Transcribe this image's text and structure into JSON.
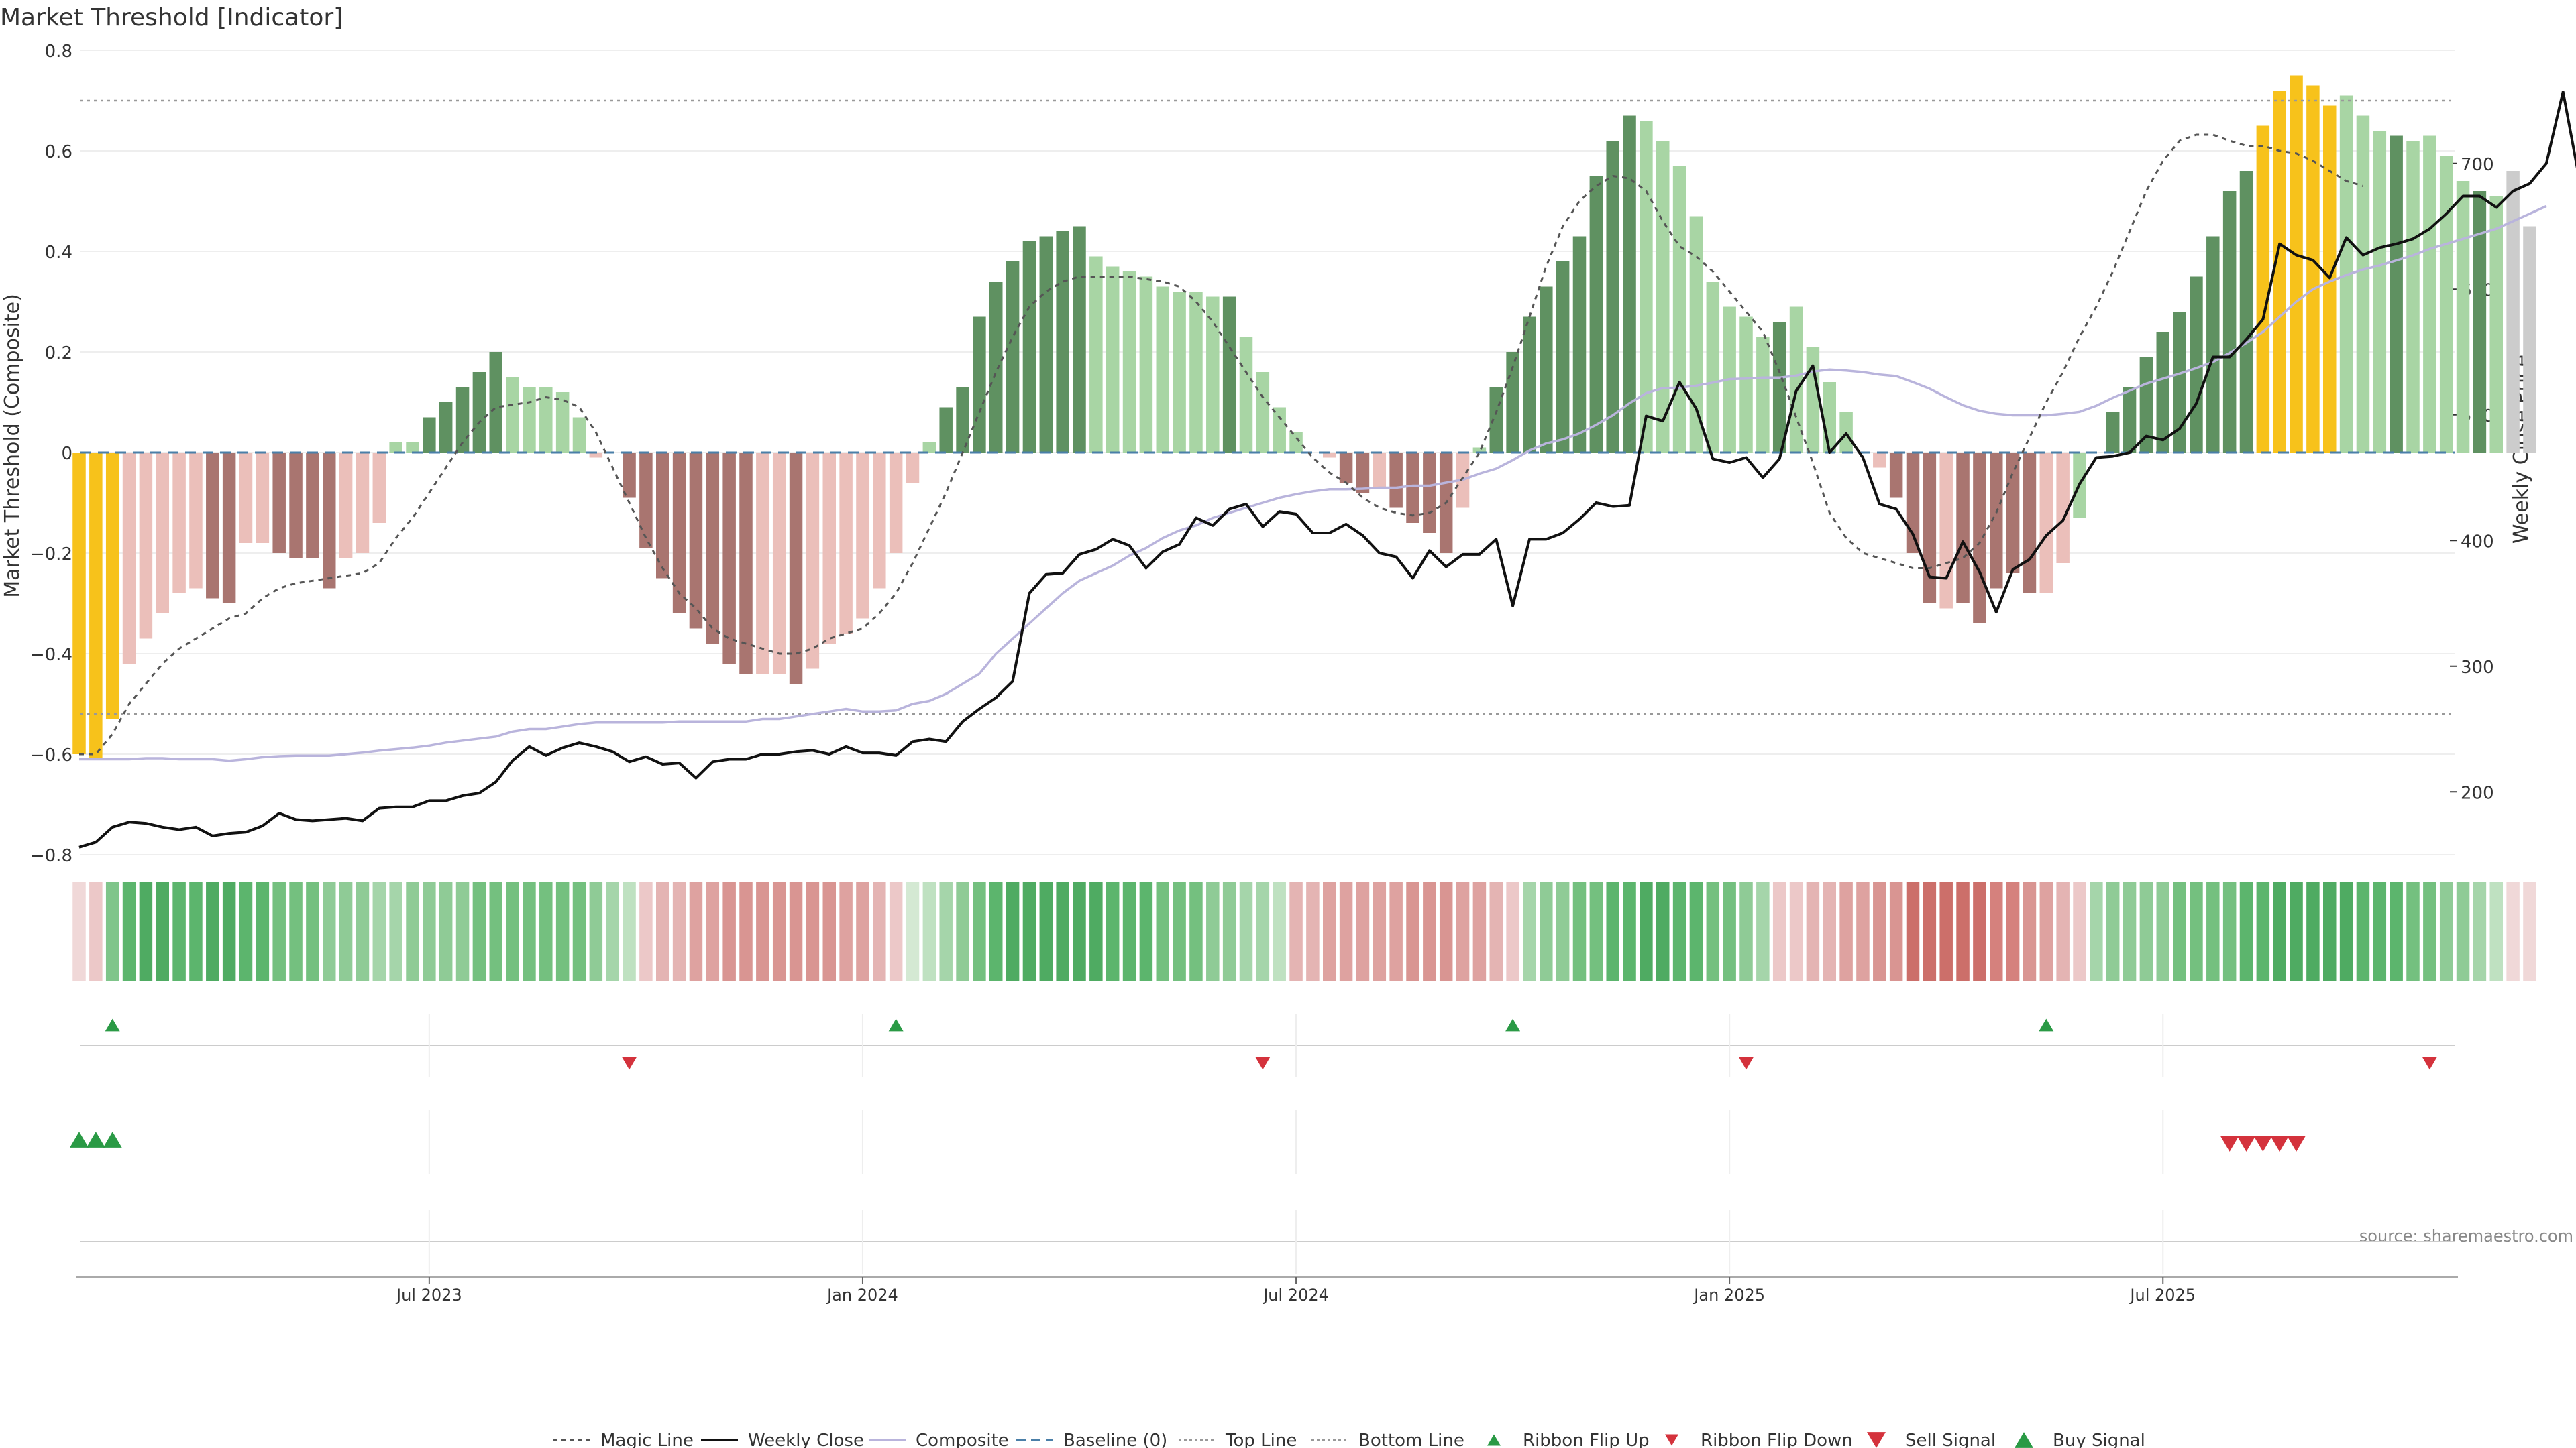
{
  "chart_data": {
    "type": "bar",
    "title": "Market Threshold [Indicator]",
    "ylabel_left": "Market Threshold (Composite)",
    "ylabel_right": "Weekly Close Price",
    "source_text": "source: sharemaestro.com",
    "ylim_left": [
      -0.8,
      0.8
    ],
    "ylim_right": [
      150,
      790
    ],
    "yticks_left": [
      "0.8",
      "0.6",
      "0.4",
      "0.2",
      "0",
      "−0.2",
      "−0.4",
      "−0.6",
      "−0.8"
    ],
    "yticks_right": [
      "700",
      "600",
      "500",
      "400",
      "300",
      "200"
    ],
    "x_tick_labels": [
      "Jul 2023",
      "Jan 2024",
      "Jul 2024",
      "Jan 2025",
      "Jul 2025"
    ],
    "x_tick_week_index": [
      21,
      47,
      73,
      99,
      125
    ],
    "top_line": 0.7,
    "bottom_line": -0.52,
    "grid": true,
    "legend_position": "bottom-center",
    "colors": {
      "bull_strong": "#5f9161",
      "bull_weak": "#a8d5a4",
      "bear_strong": "#a97570",
      "bear_weak": "#ebbfba",
      "extreme": "#f7c21b",
      "weekly_close": "#111111",
      "composite": "#b9b4dc",
      "magic": "#555555",
      "baseline": "#4a7fa8",
      "threshold": "#999999",
      "signal_up": "#2a9a45",
      "signal_down": "#d4323c"
    },
    "composite_bars": [
      -0.6,
      -0.61,
      -0.53,
      -0.42,
      -0.37,
      -0.32,
      -0.28,
      -0.27,
      -0.29,
      -0.3,
      -0.18,
      -0.18,
      -0.2,
      -0.21,
      -0.21,
      -0.27,
      -0.21,
      -0.2,
      -0.14,
      0.02,
      0.02,
      0.07,
      0.1,
      0.13,
      0.16,
      0.2,
      0.15,
      0.13,
      0.13,
      0.12,
      0.07,
      -0.01,
      0.0,
      -0.09,
      -0.19,
      -0.25,
      -0.32,
      -0.35,
      -0.38,
      -0.42,
      -0.44,
      -0.44,
      -0.44,
      -0.46,
      -0.43,
      -0.38,
      -0.36,
      -0.33,
      -0.27,
      -0.2,
      -0.06,
      0.02,
      0.09,
      0.13,
      0.27,
      0.34,
      0.38,
      0.42,
      0.43,
      0.44,
      0.45,
      0.39,
      0.37,
      0.36,
      0.35,
      0.33,
      0.32,
      0.32,
      0.31,
      0.31,
      0.23,
      0.16,
      0.09,
      0.04,
      0.0,
      -0.01,
      -0.06,
      -0.08,
      -0.07,
      -0.11,
      -0.14,
      -0.16,
      -0.2,
      -0.11,
      0.01,
      0.13,
      0.2,
      0.27,
      0.33,
      0.38,
      0.43,
      0.55,
      0.62,
      0.67,
      0.66,
      0.62,
      0.57,
      0.47,
      0.34,
      0.29,
      0.27,
      0.23,
      0.26,
      0.29,
      0.21,
      0.14,
      0.08,
      0.0,
      -0.03,
      -0.09,
      -0.2,
      -0.3,
      -0.31,
      -0.3,
      -0.34,
      -0.27,
      -0.24,
      -0.28,
      -0.28,
      -0.22,
      -0.13,
      0.0,
      0.08,
      0.13,
      0.19,
      0.24,
      0.28,
      0.35,
      0.43,
      0.52,
      0.56,
      0.65,
      0.72,
      0.75,
      0.73,
      0.69,
      0.71,
      0.67,
      0.64,
      0.63,
      0.62,
      0.63,
      0.59,
      0.54,
      0.52,
      0.51,
      0.56,
      0.45
    ],
    "bar_categories": [
      "extreme",
      "extreme",
      "extreme",
      "bear_weak",
      "bear_weak",
      "bear_weak",
      "bear_weak",
      "bear_weak",
      "bear_strong",
      "bear_strong",
      "bear_weak",
      "bear_weak",
      "bear_strong",
      "bear_strong",
      "bear_strong",
      "bear_strong",
      "bear_weak",
      "bear_weak",
      "bear_weak",
      "bull_weak",
      "bull_weak",
      "bull_strong",
      "bull_strong",
      "bull_strong",
      "bull_strong",
      "bull_strong",
      "bull_weak",
      "bull_weak",
      "bull_weak",
      "bull_weak",
      "bull_weak",
      "bear_weak",
      "bear_weak",
      "bear_strong",
      "bear_strong",
      "bear_strong",
      "bear_strong",
      "bear_strong",
      "bear_strong",
      "bear_strong",
      "bear_strong",
      "bear_weak",
      "bear_weak",
      "bear_strong",
      "bear_weak",
      "bear_weak",
      "bear_weak",
      "bear_weak",
      "bear_weak",
      "bear_weak",
      "bear_weak",
      "bull_weak",
      "bull_strong",
      "bull_strong",
      "bull_strong",
      "bull_strong",
      "bull_strong",
      "bull_strong",
      "bull_strong",
      "bull_strong",
      "bull_strong",
      "bull_weak",
      "bull_weak",
      "bull_weak",
      "bull_weak",
      "bull_weak",
      "bull_weak",
      "bull_weak",
      "bull_weak",
      "bull_strong",
      "bull_weak",
      "bull_weak",
      "bull_weak",
      "bull_weak",
      "bull_weak",
      "bear_weak",
      "bear_strong",
      "bear_strong",
      "bear_weak",
      "bear_strong",
      "bear_strong",
      "bear_strong",
      "bear_strong",
      "bear_weak",
      "bull_weak",
      "bull_strong",
      "bull_strong",
      "bull_strong",
      "bull_strong",
      "bull_strong",
      "bull_strong",
      "bull_strong",
      "bull_strong",
      "bull_strong",
      "bull_weak",
      "bull_weak",
      "bull_weak",
      "bull_weak",
      "bull_weak",
      "bull_weak",
      "bull_weak",
      "bull_weak",
      "bull_strong",
      "bull_weak",
      "bull_weak",
      "bull_weak",
      "bull_weak",
      "bull_weak",
      "bear_weak",
      "bear_strong",
      "bear_strong",
      "bear_strong",
      "bear_weak",
      "bear_strong",
      "bear_strong",
      "bear_strong",
      "bear_strong",
      "bear_strong",
      "bear_weak",
      "bear_weak",
      "bull_weak",
      "bull_strong",
      "bull_strong",
      "bull_strong",
      "bull_strong",
      "bull_strong",
      "bull_strong",
      "bull_strong",
      "bull_strong",
      "bull_strong",
      "bull_strong",
      "extreme",
      "extreme",
      "extreme",
      "extreme",
      "extreme",
      "bull_weak",
      "bull_weak",
      "bull_weak",
      "bull_strong",
      "bull_weak",
      "bull_weak",
      "bull_weak",
      "bull_weak",
      "bull_strong",
      "bull_weak"
    ],
    "weekly_close": [
      156,
      160,
      172,
      176,
      175,
      172,
      170,
      172,
      165,
      167,
      168,
      173,
      183,
      178,
      177,
      178,
      179,
      177,
      187,
      188,
      188,
      193,
      193,
      197,
      199,
      208,
      225,
      236,
      229,
      235,
      239,
      236,
      232,
      224,
      228,
      222,
      223,
      211,
      224,
      226,
      226,
      230,
      230,
      232,
      233,
      230,
      236,
      231,
      231,
      229,
      240,
      242,
      240,
      256,
      266,
      275,
      288,
      358,
      373,
      374,
      389,
      393,
      401,
      396,
      378,
      391,
      397,
      418,
      412,
      425,
      429,
      411,
      423,
      421,
      406,
      406,
      413,
      404,
      390,
      387,
      370,
      392,
      379,
      389,
      389,
      401,
      348,
      401,
      401,
      406,
      417,
      430,
      427,
      428,
      499,
      495,
      526,
      505,
      465,
      462,
      466,
      450,
      465,
      519,
      539,
      470,
      485,
      466,
      429,
      425,
      405,
      371,
      370,
      399,
      375,
      343,
      377,
      385,
      404,
      416,
      445,
      466,
      467,
      470,
      483,
      480,
      489,
      509,
      546,
      546,
      560,
      576,
      636,
      627,
      623,
      609,
      641,
      627,
      633,
      636,
      640,
      648,
      660,
      674,
      674,
      665,
      678,
      684,
      700,
      757,
      686
    ],
    "composite_line": [
      -0.61,
      -0.61,
      -0.61,
      -0.61,
      -0.608,
      -0.608,
      -0.61,
      -0.61,
      -0.61,
      -0.613,
      -0.61,
      -0.606,
      -0.604,
      -0.603,
      -0.603,
      -0.603,
      -0.6,
      -0.597,
      -0.593,
      -0.59,
      -0.587,
      -0.583,
      -0.577,
      -0.573,
      -0.569,
      -0.565,
      -0.555,
      -0.55,
      -0.55,
      -0.545,
      -0.54,
      -0.537,
      -0.537,
      -0.537,
      -0.537,
      -0.537,
      -0.535,
      -0.535,
      -0.535,
      -0.535,
      -0.535,
      -0.53,
      -0.53,
      -0.525,
      -0.52,
      -0.515,
      -0.51,
      -0.515,
      -0.515,
      -0.513,
      -0.5,
      -0.494,
      -0.48,
      -0.46,
      -0.44,
      -0.4,
      -0.37,
      -0.34,
      -0.31,
      -0.28,
      -0.255,
      -0.24,
      -0.225,
      -0.205,
      -0.19,
      -0.17,
      -0.155,
      -0.145,
      -0.13,
      -0.12,
      -0.11,
      -0.1,
      -0.09,
      -0.083,
      -0.077,
      -0.073,
      -0.073,
      -0.072,
      -0.07,
      -0.07,
      -0.066,
      -0.066,
      -0.06,
      -0.054,
      -0.042,
      -0.032,
      -0.015,
      0.004,
      0.018,
      0.026,
      0.038,
      0.055,
      0.074,
      0.098,
      0.118,
      0.128,
      0.129,
      0.133,
      0.139,
      0.146,
      0.147,
      0.149,
      0.149,
      0.153,
      0.161,
      0.165,
      0.163,
      0.16,
      0.155,
      0.152,
      0.14,
      0.127,
      0.11,
      0.094,
      0.083,
      0.077,
      0.074,
      0.074,
      0.074,
      0.077,
      0.081,
      0.093,
      0.109,
      0.123,
      0.137,
      0.147,
      0.157,
      0.168,
      0.18,
      0.198,
      0.218,
      0.24,
      0.27,
      0.3,
      0.325,
      0.34,
      0.353,
      0.364,
      0.372,
      0.382,
      0.392,
      0.405,
      0.415,
      0.425,
      0.435,
      0.445,
      0.46,
      0.475,
      0.49
    ],
    "magic_line": [
      -0.6,
      -0.6,
      -0.56,
      -0.5,
      -0.46,
      -0.42,
      -0.39,
      -0.37,
      -0.35,
      -0.33,
      -0.32,
      -0.29,
      -0.27,
      -0.26,
      -0.255,
      -0.25,
      -0.245,
      -0.24,
      -0.22,
      -0.17,
      -0.13,
      -0.08,
      -0.03,
      0.02,
      0.06,
      0.09,
      0.095,
      0.1,
      0.11,
      0.105,
      0.09,
      0.04,
      -0.03,
      -0.1,
      -0.17,
      -0.23,
      -0.28,
      -0.31,
      -0.35,
      -0.37,
      -0.38,
      -0.39,
      -0.4,
      -0.4,
      -0.39,
      -0.37,
      -0.36,
      -0.35,
      -0.32,
      -0.28,
      -0.22,
      -0.15,
      -0.08,
      0.0,
      0.08,
      0.16,
      0.23,
      0.29,
      0.32,
      0.34,
      0.35,
      0.35,
      0.35,
      0.35,
      0.345,
      0.34,
      0.33,
      0.3,
      0.26,
      0.21,
      0.16,
      0.11,
      0.07,
      0.03,
      -0.01,
      -0.04,
      -0.06,
      -0.09,
      -0.11,
      -0.12,
      -0.125,
      -0.12,
      -0.1,
      -0.05,
      0.0,
      0.08,
      0.17,
      0.27,
      0.37,
      0.45,
      0.5,
      0.53,
      0.55,
      0.545,
      0.52,
      0.46,
      0.41,
      0.39,
      0.36,
      0.32,
      0.28,
      0.24,
      0.16,
      0.07,
      -0.02,
      -0.12,
      -0.17,
      -0.2,
      -0.21,
      -0.22,
      -0.23,
      -0.23,
      -0.22,
      -0.21,
      -0.18,
      -0.12,
      -0.04,
      0.03,
      0.1,
      0.16,
      0.23,
      0.29,
      0.36,
      0.44,
      0.52,
      0.58,
      0.62,
      0.632,
      0.632,
      0.62,
      0.61,
      0.61,
      0.6,
      0.595,
      0.58,
      0.56,
      0.54,
      0.53
    ],
    "ribbon_colors": [
      "#f0d8d8",
      "#ecc8c8",
      "#7fc58a",
      "#5cb56d",
      "#4fab62",
      "#4fab62",
      "#5cb56d",
      "#5cb56d",
      "#4fab62",
      "#4fab62",
      "#5cb56d",
      "#5cb56d",
      "#74c07f",
      "#74c07f",
      "#74c07f",
      "#8fcb96",
      "#8fcb96",
      "#8fcb96",
      "#a5d5aa",
      "#a5d5aa",
      "#8fcb96",
      "#8fcb96",
      "#8fcb96",
      "#8fcb96",
      "#74c07f",
      "#74c07f",
      "#74c07f",
      "#74c07f",
      "#74c07f",
      "#74c07f",
      "#74c07f",
      "#8fcb96",
      "#a5d5aa",
      "#bfe1c1",
      "#ecc8c8",
      "#e4b4b3",
      "#e4b4b3",
      "#dea2a0",
      "#dea2a0",
      "#d99592",
      "#d99592",
      "#d99592",
      "#d99592",
      "#d99592",
      "#d99592",
      "#d99592",
      "#dea2a0",
      "#dea2a0",
      "#e4b4b3",
      "#ecc8c8",
      "#d4e9d3",
      "#bfe1c1",
      "#a5d5aa",
      "#8fcb96",
      "#74c07f",
      "#5cb56d",
      "#4fab62",
      "#4fab62",
      "#4fab62",
      "#4fab62",
      "#4fab62",
      "#4fab62",
      "#5cb56d",
      "#5cb56d",
      "#5cb56d",
      "#74c07f",
      "#74c07f",
      "#74c07f",
      "#8fcb96",
      "#8fcb96",
      "#a5d5aa",
      "#a5d5aa",
      "#bfe1c1",
      "#e4b4b3",
      "#e4b4b3",
      "#dea2a0",
      "#dea2a0",
      "#dea2a0",
      "#dea2a0",
      "#dea2a0",
      "#d99592",
      "#d99592",
      "#d99592",
      "#dea2a0",
      "#dea2a0",
      "#e4b4b3",
      "#ecc8c8",
      "#a5d5aa",
      "#8fcb96",
      "#8fcb96",
      "#74c07f",
      "#74c07f",
      "#5cb56d",
      "#5cb56d",
      "#4fab62",
      "#4fab62",
      "#5cb56d",
      "#5cb56d",
      "#74c07f",
      "#74c07f",
      "#8fcb96",
      "#a5d5aa",
      "#ecc8c8",
      "#ecc8c8",
      "#e4b4b3",
      "#e4b4b3",
      "#dea2a0",
      "#dea2a0",
      "#d99592",
      "#d99592",
      "#cc6f6a",
      "#cc6f6a",
      "#cc6f6a",
      "#cc6f6a",
      "#cc6f6a",
      "#d5817d",
      "#d5817d",
      "#d99592",
      "#dea2a0",
      "#e4b4b3",
      "#ecc8c8",
      "#a5d5aa",
      "#8fcb96",
      "#8fcb96",
      "#8fcb96",
      "#8fcb96",
      "#74c07f",
      "#74c07f",
      "#74c07f",
      "#74c07f",
      "#5cb56d",
      "#5cb56d",
      "#4fab62",
      "#4fab62",
      "#4fab62",
      "#4fab62",
      "#4fab62",
      "#5cb56d",
      "#5cb56d",
      "#5cb56d",
      "#74c07f",
      "#74c07f",
      "#8fcb96",
      "#8fcb96",
      "#a5d5aa",
      "#bfe1c1",
      "#f0d8d8",
      "#f0d8d8"
    ],
    "ribbon_flip_up": [
      2,
      49,
      86,
      118
    ],
    "ribbon_flip_down": [
      33,
      71,
      100,
      141
    ],
    "buy_signal": [
      0,
      1,
      2
    ],
    "sell_signal": [
      129,
      130,
      131,
      132,
      133
    ],
    "legend": [
      {
        "label": "Magic Line",
        "kind": "line",
        "color": "#555555",
        "dash": "6,6"
      },
      {
        "label": "Weekly Close",
        "kind": "line",
        "color": "#111111",
        "dash": ""
      },
      {
        "label": "Composite",
        "kind": "line",
        "color": "#b9b4dc",
        "dash": ""
      },
      {
        "label": "Baseline (0)",
        "kind": "line",
        "color": "#4a7fa8",
        "dash": "14,8"
      },
      {
        "label": "Top Line",
        "kind": "line",
        "color": "#999999",
        "dash": "4,4"
      },
      {
        "label": "Bottom Line",
        "kind": "line",
        "color": "#999999",
        "dash": "4,4"
      },
      {
        "label": "Ribbon Flip Up",
        "kind": "tri-up-small",
        "color": "#2a9a45",
        "dash": ""
      },
      {
        "label": "Ribbon Flip Down",
        "kind": "tri-down-small",
        "color": "#d4323c",
        "dash": ""
      },
      {
        "label": "Sell Signal",
        "kind": "tri-down",
        "color": "#d4323c",
        "dash": ""
      },
      {
        "label": "Buy Signal",
        "kind": "tri-up",
        "color": "#2a9a45",
        "dash": ""
      }
    ]
  }
}
